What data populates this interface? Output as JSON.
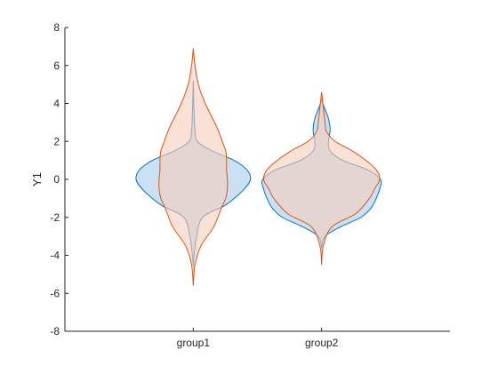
{
  "chart_data": {
    "type": "violin",
    "title": "",
    "xlabel": "",
    "ylabel": "Y1",
    "ylim": [
      -8,
      8
    ],
    "yticks": [
      -8,
      -6,
      -4,
      -2,
      0,
      2,
      4,
      6,
      8
    ],
    "categories": [
      "group1",
      "group2"
    ],
    "grid": false,
    "series": [
      {
        "color": "#0072BD",
        "fill": "#A9CDEB",
        "groups": [
          {
            "category": "group1",
            "y_min": -4.6,
            "y_max": 5.2,
            "profile": [
              [
                -4.6,
                0
              ],
              [
                -4.0,
                0.01
              ],
              [
                -3.0,
                0.04
              ],
              [
                -2.0,
                0.11
              ],
              [
                -1.4,
                0.36
              ],
              [
                -1.0,
                0.48
              ],
              [
                -0.5,
                0.6
              ],
              [
                0.0,
                0.67
              ],
              [
                0.5,
                0.63
              ],
              [
                1.0,
                0.48
              ],
              [
                1.5,
                0.22
              ],
              [
                2.0,
                0.05
              ],
              [
                2.6,
                0.02
              ],
              [
                3.5,
                0.01
              ],
              [
                5.2,
                0
              ]
            ]
          },
          {
            "category": "group2",
            "y_min": -3.6,
            "y_max": 4.2,
            "profile": [
              [
                -3.6,
                0
              ],
              [
                -3.0,
                0.04
              ],
              [
                -2.5,
                0.22
              ],
              [
                -2.0,
                0.46
              ],
              [
                -1.5,
                0.58
              ],
              [
                -1.0,
                0.64
              ],
              [
                -0.5,
                0.68
              ],
              [
                0.0,
                0.69
              ],
              [
                0.5,
                0.54
              ],
              [
                1.0,
                0.25
              ],
              [
                1.5,
                0.1
              ],
              [
                2.0,
                0.08
              ],
              [
                2.6,
                0.1
              ],
              [
                3.2,
                0.08
              ],
              [
                3.8,
                0.03
              ],
              [
                4.2,
                0
              ]
            ]
          }
        ]
      },
      {
        "color": "#D95319",
        "fill": "#F7CDBA",
        "groups": [
          {
            "category": "group1",
            "y_min": -5.6,
            "y_max": 6.9,
            "profile": [
              [
                -5.6,
                0
              ],
              [
                -4.5,
                0.02
              ],
              [
                -3.5,
                0.09
              ],
              [
                -2.5,
                0.24
              ],
              [
                -1.5,
                0.33
              ],
              [
                -1.0,
                0.38
              ],
              [
                -0.5,
                0.4
              ],
              [
                0.0,
                0.4
              ],
              [
                0.5,
                0.39
              ],
              [
                1.0,
                0.39
              ],
              [
                1.5,
                0.38
              ],
              [
                2.0,
                0.34
              ],
              [
                2.5,
                0.3
              ],
              [
                3.0,
                0.25
              ],
              [
                4.0,
                0.14
              ],
              [
                5.0,
                0.06
              ],
              [
                6.0,
                0.02
              ],
              [
                6.9,
                0
              ]
            ]
          },
          {
            "category": "group2",
            "y_min": -4.5,
            "y_max": 4.6,
            "profile": [
              [
                -4.5,
                0
              ],
              [
                -3.5,
                0.02
              ],
              [
                -2.5,
                0.12
              ],
              [
                -1.8,
                0.4
              ],
              [
                -1.0,
                0.56
              ],
              [
                -0.5,
                0.62
              ],
              [
                0.0,
                0.68
              ],
              [
                0.5,
                0.64
              ],
              [
                1.0,
                0.52
              ],
              [
                1.5,
                0.36
              ],
              [
                2.0,
                0.16
              ],
              [
                2.5,
                0.06
              ],
              [
                3.0,
                0.04
              ],
              [
                3.8,
                0.02
              ],
              [
                4.6,
                0
              ]
            ]
          }
        ]
      }
    ]
  }
}
